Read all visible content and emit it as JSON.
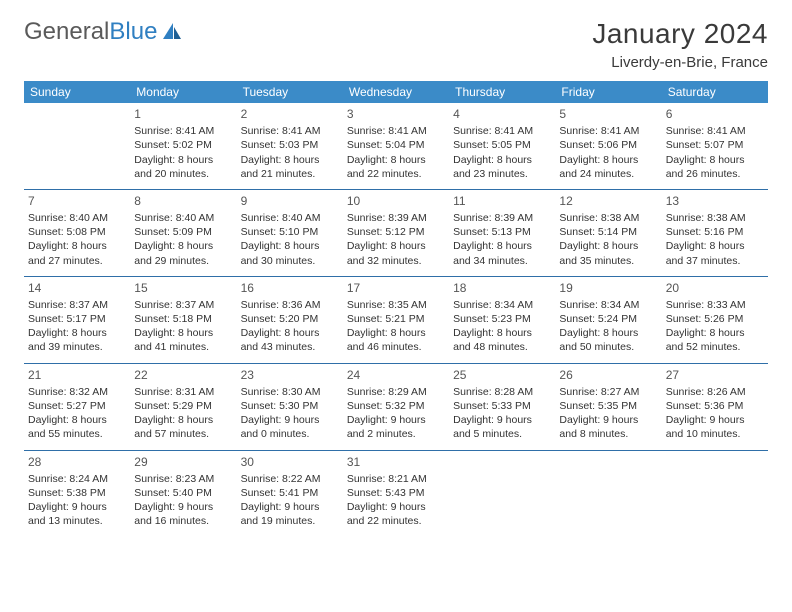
{
  "logo": {
    "part1": "General",
    "part2": "Blue"
  },
  "title": "January 2024",
  "location": "Liverdy-en-Brie, France",
  "weekday_header_bg": "#3b8bc8",
  "weekday_header_text": "#ffffff",
  "cell_border_color": "#2f6fa8",
  "weekdays": [
    "Sunday",
    "Monday",
    "Tuesday",
    "Wednesday",
    "Thursday",
    "Friday",
    "Saturday"
  ],
  "days": [
    null,
    {
      "n": "1",
      "sunrise": "Sunrise: 8:41 AM",
      "sunset": "Sunset: 5:02 PM",
      "dl1": "Daylight: 8 hours",
      "dl2": "and 20 minutes."
    },
    {
      "n": "2",
      "sunrise": "Sunrise: 8:41 AM",
      "sunset": "Sunset: 5:03 PM",
      "dl1": "Daylight: 8 hours",
      "dl2": "and 21 minutes."
    },
    {
      "n": "3",
      "sunrise": "Sunrise: 8:41 AM",
      "sunset": "Sunset: 5:04 PM",
      "dl1": "Daylight: 8 hours",
      "dl2": "and 22 minutes."
    },
    {
      "n": "4",
      "sunrise": "Sunrise: 8:41 AM",
      "sunset": "Sunset: 5:05 PM",
      "dl1": "Daylight: 8 hours",
      "dl2": "and 23 minutes."
    },
    {
      "n": "5",
      "sunrise": "Sunrise: 8:41 AM",
      "sunset": "Sunset: 5:06 PM",
      "dl1": "Daylight: 8 hours",
      "dl2": "and 24 minutes."
    },
    {
      "n": "6",
      "sunrise": "Sunrise: 8:41 AM",
      "sunset": "Sunset: 5:07 PM",
      "dl1": "Daylight: 8 hours",
      "dl2": "and 26 minutes."
    },
    {
      "n": "7",
      "sunrise": "Sunrise: 8:40 AM",
      "sunset": "Sunset: 5:08 PM",
      "dl1": "Daylight: 8 hours",
      "dl2": "and 27 minutes."
    },
    {
      "n": "8",
      "sunrise": "Sunrise: 8:40 AM",
      "sunset": "Sunset: 5:09 PM",
      "dl1": "Daylight: 8 hours",
      "dl2": "and 29 minutes."
    },
    {
      "n": "9",
      "sunrise": "Sunrise: 8:40 AM",
      "sunset": "Sunset: 5:10 PM",
      "dl1": "Daylight: 8 hours",
      "dl2": "and 30 minutes."
    },
    {
      "n": "10",
      "sunrise": "Sunrise: 8:39 AM",
      "sunset": "Sunset: 5:12 PM",
      "dl1": "Daylight: 8 hours",
      "dl2": "and 32 minutes."
    },
    {
      "n": "11",
      "sunrise": "Sunrise: 8:39 AM",
      "sunset": "Sunset: 5:13 PM",
      "dl1": "Daylight: 8 hours",
      "dl2": "and 34 minutes."
    },
    {
      "n": "12",
      "sunrise": "Sunrise: 8:38 AM",
      "sunset": "Sunset: 5:14 PM",
      "dl1": "Daylight: 8 hours",
      "dl2": "and 35 minutes."
    },
    {
      "n": "13",
      "sunrise": "Sunrise: 8:38 AM",
      "sunset": "Sunset: 5:16 PM",
      "dl1": "Daylight: 8 hours",
      "dl2": "and 37 minutes."
    },
    {
      "n": "14",
      "sunrise": "Sunrise: 8:37 AM",
      "sunset": "Sunset: 5:17 PM",
      "dl1": "Daylight: 8 hours",
      "dl2": "and 39 minutes."
    },
    {
      "n": "15",
      "sunrise": "Sunrise: 8:37 AM",
      "sunset": "Sunset: 5:18 PM",
      "dl1": "Daylight: 8 hours",
      "dl2": "and 41 minutes."
    },
    {
      "n": "16",
      "sunrise": "Sunrise: 8:36 AM",
      "sunset": "Sunset: 5:20 PM",
      "dl1": "Daylight: 8 hours",
      "dl2": "and 43 minutes."
    },
    {
      "n": "17",
      "sunrise": "Sunrise: 8:35 AM",
      "sunset": "Sunset: 5:21 PM",
      "dl1": "Daylight: 8 hours",
      "dl2": "and 46 minutes."
    },
    {
      "n": "18",
      "sunrise": "Sunrise: 8:34 AM",
      "sunset": "Sunset: 5:23 PM",
      "dl1": "Daylight: 8 hours",
      "dl2": "and 48 minutes."
    },
    {
      "n": "19",
      "sunrise": "Sunrise: 8:34 AM",
      "sunset": "Sunset: 5:24 PM",
      "dl1": "Daylight: 8 hours",
      "dl2": "and 50 minutes."
    },
    {
      "n": "20",
      "sunrise": "Sunrise: 8:33 AM",
      "sunset": "Sunset: 5:26 PM",
      "dl1": "Daylight: 8 hours",
      "dl2": "and 52 minutes."
    },
    {
      "n": "21",
      "sunrise": "Sunrise: 8:32 AM",
      "sunset": "Sunset: 5:27 PM",
      "dl1": "Daylight: 8 hours",
      "dl2": "and 55 minutes."
    },
    {
      "n": "22",
      "sunrise": "Sunrise: 8:31 AM",
      "sunset": "Sunset: 5:29 PM",
      "dl1": "Daylight: 8 hours",
      "dl2": "and 57 minutes."
    },
    {
      "n": "23",
      "sunrise": "Sunrise: 8:30 AM",
      "sunset": "Sunset: 5:30 PM",
      "dl1": "Daylight: 9 hours",
      "dl2": "and 0 minutes."
    },
    {
      "n": "24",
      "sunrise": "Sunrise: 8:29 AM",
      "sunset": "Sunset: 5:32 PM",
      "dl1": "Daylight: 9 hours",
      "dl2": "and 2 minutes."
    },
    {
      "n": "25",
      "sunrise": "Sunrise: 8:28 AM",
      "sunset": "Sunset: 5:33 PM",
      "dl1": "Daylight: 9 hours",
      "dl2": "and 5 minutes."
    },
    {
      "n": "26",
      "sunrise": "Sunrise: 8:27 AM",
      "sunset": "Sunset: 5:35 PM",
      "dl1": "Daylight: 9 hours",
      "dl2": "and 8 minutes."
    },
    {
      "n": "27",
      "sunrise": "Sunrise: 8:26 AM",
      "sunset": "Sunset: 5:36 PM",
      "dl1": "Daylight: 9 hours",
      "dl2": "and 10 minutes."
    },
    {
      "n": "28",
      "sunrise": "Sunrise: 8:24 AM",
      "sunset": "Sunset: 5:38 PM",
      "dl1": "Daylight: 9 hours",
      "dl2": "and 13 minutes."
    },
    {
      "n": "29",
      "sunrise": "Sunrise: 8:23 AM",
      "sunset": "Sunset: 5:40 PM",
      "dl1": "Daylight: 9 hours",
      "dl2": "and 16 minutes."
    },
    {
      "n": "30",
      "sunrise": "Sunrise: 8:22 AM",
      "sunset": "Sunset: 5:41 PM",
      "dl1": "Daylight: 9 hours",
      "dl2": "and 19 minutes."
    },
    {
      "n": "31",
      "sunrise": "Sunrise: 8:21 AM",
      "sunset": "Sunset: 5:43 PM",
      "dl1": "Daylight: 9 hours",
      "dl2": "and 22 minutes."
    },
    null,
    null,
    null
  ]
}
